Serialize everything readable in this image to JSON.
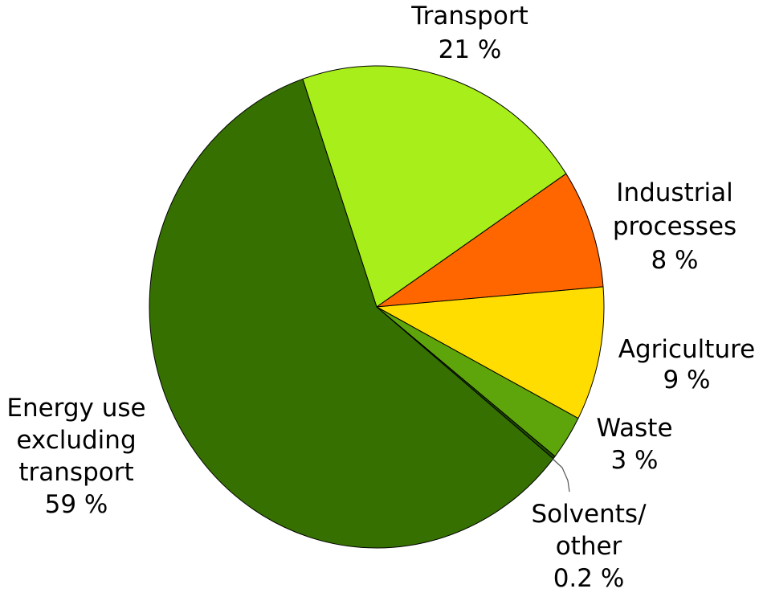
{
  "chart_data": {
    "type": "pie",
    "title": "",
    "start_angle_deg": -19,
    "direction": "clockwise",
    "slices": [
      {
        "label_lines": [
          "Transport",
          "21 %"
        ],
        "value": 21,
        "color": "#a8ee1a"
      },
      {
        "label_lines": [
          "Industrial",
          "processes",
          "8 %"
        ],
        "value": 8,
        "color": "#ff6600"
      },
      {
        "label_lines": [
          "Agriculture",
          "9 %"
        ],
        "value": 9,
        "color": "#ffdd00"
      },
      {
        "label_lines": [
          "Waste",
          "3 %"
        ],
        "value": 3,
        "color": "#5ea50b"
      },
      {
        "label_lines": [
          "Solvents/",
          "other",
          "0.2 %"
        ],
        "value": 0.2,
        "color": "#1f4a00"
      },
      {
        "label_lines": [
          "Energy use",
          "excluding",
          "transport",
          "59 %"
        ],
        "value": 59,
        "color": "#357000"
      }
    ]
  }
}
